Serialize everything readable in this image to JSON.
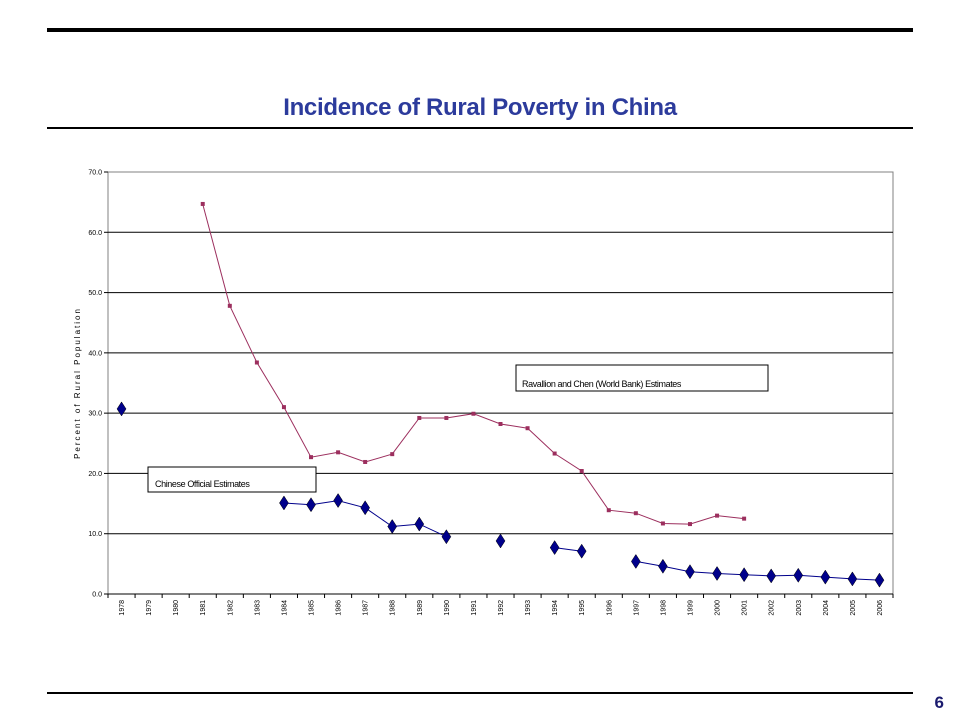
{
  "slide": {
    "title": "Incidence of Rural Poverty in China",
    "page_number": "6"
  },
  "chart_data": {
    "type": "line",
    "ylabel": "Percent of Rural Population",
    "xlabel": "",
    "ylim": [
      0,
      70
    ],
    "yticks": [
      "0.0",
      "10.0",
      "20.0",
      "30.0",
      "40.0",
      "50.0",
      "60.0",
      "70.0"
    ],
    "grid": "horizontal",
    "categories": [
      "1978",
      "1979",
      "1980",
      "1981",
      "1982",
      "1983",
      "1984",
      "1985",
      "1986",
      "1987",
      "1988",
      "1989",
      "1990",
      "1991",
      "1992",
      "1993",
      "1994",
      "1995",
      "1996",
      "1997",
      "1998",
      "1999",
      "2000",
      "2001",
      "2002",
      "2003",
      "2004",
      "2005",
      "2006"
    ],
    "series": [
      {
        "name": "Ravallion and Chen (World Bank) Estimates",
        "color": "#9c2f5e",
        "marker": "square",
        "values": [
          null,
          null,
          null,
          64.7,
          47.8,
          38.4,
          31.0,
          22.7,
          23.5,
          21.9,
          23.2,
          29.2,
          29.2,
          29.9,
          28.2,
          27.5,
          23.3,
          20.4,
          13.9,
          13.4,
          11.7,
          11.6,
          13.0,
          12.5,
          null,
          null,
          null,
          null,
          null
        ]
      },
      {
        "name": "Chinese Official Estimates",
        "color": "#00008b",
        "marker": "diamond",
        "values": [
          30.7,
          null,
          null,
          null,
          null,
          null,
          15.1,
          14.8,
          15.5,
          14.3,
          11.2,
          11.6,
          9.5,
          null,
          8.8,
          null,
          7.7,
          7.1,
          null,
          5.4,
          4.6,
          3.7,
          3.4,
          3.2,
          3.0,
          3.1,
          2.8,
          2.5,
          2.3
        ]
      }
    ],
    "annotations": [
      {
        "text": "Ravallion and Chen (World Bank) Estimates"
      },
      {
        "text": "Chinese Official Estimates"
      }
    ]
  }
}
